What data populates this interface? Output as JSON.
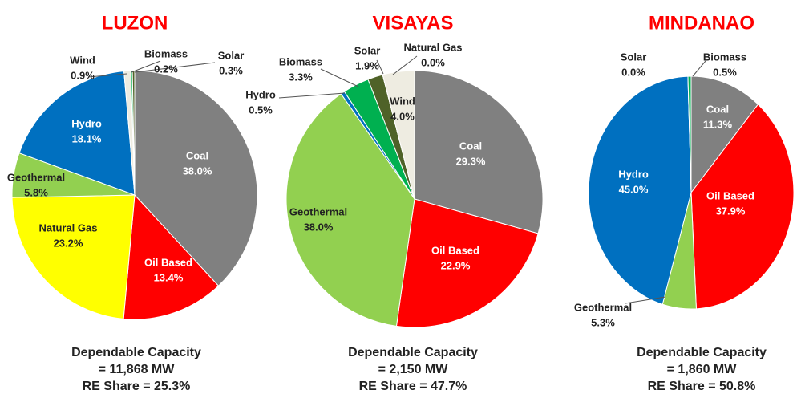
{
  "chart_data": [
    {
      "type": "pie",
      "title": "LUZON",
      "categories": [
        "Coal",
        "Oil Based",
        "Natural Gas",
        "Geothermal",
        "Hydro",
        "Wind",
        "Biomass",
        "Solar"
      ],
      "values": [
        38.0,
        13.4,
        23.2,
        5.8,
        18.1,
        0.9,
        0.2,
        0.3
      ],
      "value_labels": [
        "38.0%",
        "13.4%",
        "23.2%",
        "5.8%",
        "18.1%",
        "0.9%",
        "0.2%",
        "0.3%"
      ],
      "colors": [
        "#808080",
        "#ff0000",
        "#ffff00",
        "#92d050",
        "#0070c0",
        "#eeece1",
        "#00b050",
        "#4f6228"
      ],
      "footer": [
        "Dependable Capacity",
        "= 11,868 MW",
        "RE Share = 25.3%"
      ]
    },
    {
      "type": "pie",
      "title": "VISAYAS",
      "categories": [
        "Coal",
        "Oil Based",
        "Geothermal",
        "Hydro",
        "Biomass",
        "Solar",
        "Natural Gas",
        "Wind"
      ],
      "values": [
        29.3,
        22.9,
        38.0,
        0.5,
        3.3,
        1.9,
        0.0,
        4.0
      ],
      "value_labels": [
        "29.3%",
        "22.9%",
        "38.0%",
        "0.5%",
        "3.3%",
        "1.9%",
        "0.0%",
        "4.0%"
      ],
      "colors": [
        "#808080",
        "#ff0000",
        "#92d050",
        "#0070c0",
        "#00b050",
        "#4f6228",
        "#ffff00",
        "#eeece1"
      ],
      "footer": [
        "Dependable Capacity",
        "= 2,150 MW",
        "RE Share = 47.7%"
      ]
    },
    {
      "type": "pie",
      "title": "MINDANAO",
      "categories": [
        "Coal",
        "Oil Based",
        "Geothermal",
        "Hydro",
        "Solar",
        "Biomass"
      ],
      "values": [
        11.3,
        37.9,
        5.3,
        45.0,
        0.0,
        0.5
      ],
      "value_labels": [
        "11.3%",
        "37.9%",
        "5.3%",
        "45.0%",
        "0.0%",
        "0.5%"
      ],
      "colors": [
        "#808080",
        "#ff0000",
        "#92d050",
        "#0070c0",
        "#4f6228",
        "#00b050"
      ],
      "footer": [
        "Dependable Capacity",
        "= 1,860 MW",
        "RE Share = 50.8%"
      ]
    }
  ]
}
